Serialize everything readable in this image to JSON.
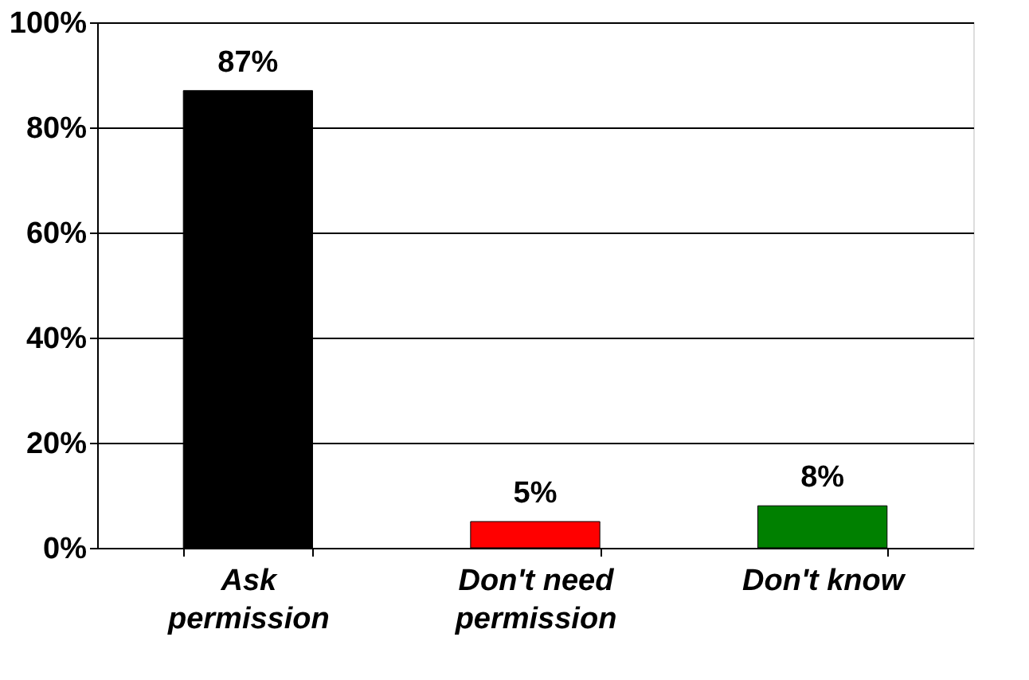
{
  "chart_data": {
    "type": "bar",
    "categories": [
      "Ask permission",
      "Don't need permission",
      "Don't know"
    ],
    "values": [
      87,
      5,
      8
    ],
    "colors": [
      "#000000",
      "#ff0000",
      "#008000"
    ],
    "value_labels": [
      "87%",
      "5%",
      "8%"
    ],
    "ylim": [
      0,
      100
    ],
    "yticks": [
      {
        "value": 0,
        "label": "0%"
      },
      {
        "value": 20,
        "label": "20%"
      },
      {
        "value": 40,
        "label": "40%"
      },
      {
        "value": 60,
        "label": "60%"
      },
      {
        "value": 80,
        "label": "80%"
      },
      {
        "value": 100,
        "label": "100%"
      }
    ],
    "grid": "y"
  }
}
